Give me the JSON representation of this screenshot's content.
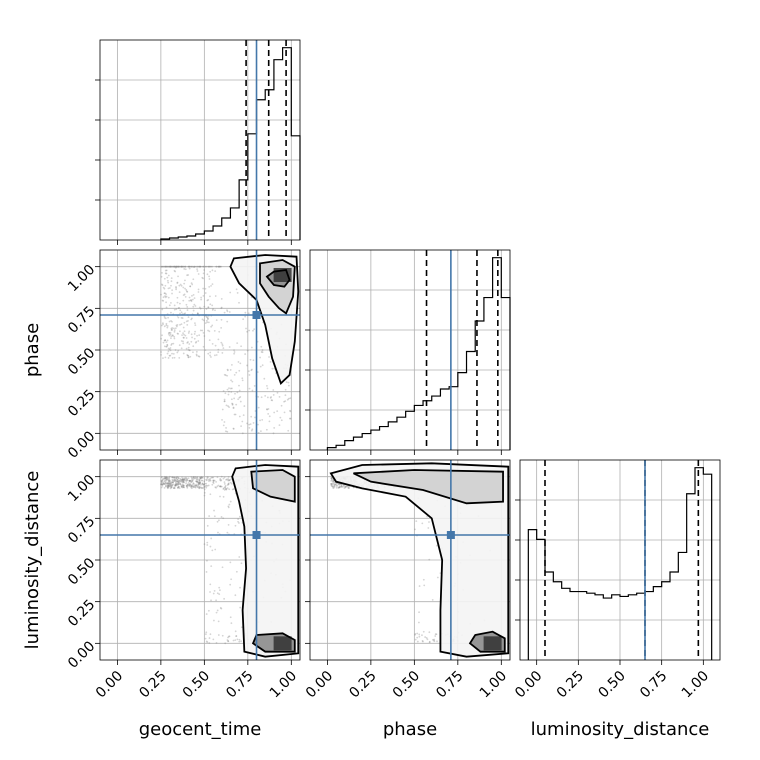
{
  "chart_data": {
    "type": "corner",
    "parameters": [
      "geocent_time",
      "phase",
      "luminosity_distance"
    ],
    "tick_labels": [
      "0.00",
      "0.25",
      "0.50",
      "0.75",
      "1.00"
    ],
    "axis_range": [
      -0.1,
      1.1
    ],
    "grid": true,
    "truth_color": "#4477aa",
    "truths": {
      "geocent_time": 0.8,
      "phase": 0.71,
      "luminosity_distance": 0.65
    },
    "histograms": [
      {
        "parameter": "geocent_time",
        "range": [
          -0.1,
          1.05
        ],
        "bin_edges": [
          0.25,
          0.3,
          0.35,
          0.4,
          0.45,
          0.5,
          0.55,
          0.6,
          0.65,
          0.7,
          0.75,
          0.8,
          0.85,
          0.9,
          0.95,
          1.0,
          1.05
        ],
        "counts": [
          0.005,
          0.01,
          0.015,
          0.02,
          0.03,
          0.045,
          0.07,
          0.11,
          0.16,
          0.3,
          0.53,
          0.7,
          0.75,
          0.9,
          0.96,
          0.52
        ],
        "quantiles": [
          0.74,
          0.87,
          0.97
        ]
      },
      {
        "parameter": "phase",
        "range": [
          -0.1,
          1.05
        ],
        "bin_edges": [
          0.0,
          0.05,
          0.1,
          0.15,
          0.2,
          0.25,
          0.3,
          0.35,
          0.4,
          0.45,
          0.5,
          0.55,
          0.6,
          0.65,
          0.7,
          0.75,
          0.8,
          0.85,
          0.9,
          0.95,
          1.0,
          1.05
        ],
        "counts": [
          0.01,
          0.02,
          0.04,
          0.055,
          0.07,
          0.085,
          0.1,
          0.12,
          0.14,
          0.165,
          0.19,
          0.21,
          0.23,
          0.26,
          0.27,
          0.33,
          0.42,
          0.55,
          0.65,
          0.82,
          0.65
        ],
        "quantiles": [
          0.57,
          0.86,
          0.98
        ]
      },
      {
        "parameter": "luminosity_distance",
        "range": [
          -0.1,
          1.1
        ],
        "bin_edges": [
          -0.05,
          0.0,
          0.05,
          0.1,
          0.15,
          0.2,
          0.25,
          0.3,
          0.35,
          0.4,
          0.45,
          0.5,
          0.55,
          0.6,
          0.65,
          0.7,
          0.75,
          0.8,
          0.85,
          0.9,
          0.95,
          1.0,
          1.05
        ],
        "counts": [
          0.4,
          0.37,
          0.27,
          0.24,
          0.22,
          0.21,
          0.21,
          0.205,
          0.2,
          0.19,
          0.2,
          0.195,
          0.2,
          0.205,
          0.21,
          0.225,
          0.24,
          0.27,
          0.33,
          0.51,
          0.59,
          0.57
        ],
        "quantiles": [
          0.05,
          0.65,
          0.97
        ]
      }
    ],
    "scatter_panels": [
      {
        "x": "geocent_time",
        "y": "phase",
        "mode": [
          0.95,
          0.95
        ],
        "contours": [
          [
            [
              0.67,
              1.05
            ],
            [
              0.85,
              1.07
            ],
            [
              1.03,
              1.06
            ],
            [
              1.04,
              0.85
            ],
            [
              1.02,
              0.55
            ],
            [
              0.99,
              0.35
            ],
            [
              0.94,
              0.3
            ],
            [
              0.89,
              0.45
            ],
            [
              0.85,
              0.65
            ],
            [
              0.8,
              0.8
            ],
            [
              0.7,
              0.9
            ],
            [
              0.65,
              1.0
            ]
          ],
          [
            [
              0.82,
              1.02
            ],
            [
              0.95,
              1.04
            ],
            [
              1.02,
              1.0
            ],
            [
              1.01,
              0.82
            ],
            [
              0.97,
              0.72
            ],
            [
              0.93,
              0.75
            ],
            [
              0.87,
              0.82
            ],
            [
              0.82,
              0.9
            ]
          ],
          [
            [
              0.86,
              0.94
            ],
            [
              0.9,
              0.97
            ],
            [
              0.97,
              0.98
            ],
            [
              0.99,
              0.92
            ],
            [
              0.96,
              0.88
            ],
            [
              0.9,
              0.89
            ]
          ]
        ]
      },
      {
        "x": "geocent_time",
        "y": "luminosity_distance",
        "mode": [
          0.95,
          0.0
        ],
        "contours": [
          [
            [
              0.68,
              1.05
            ],
            [
              0.85,
              1.07
            ],
            [
              1.04,
              1.06
            ],
            [
              1.04,
              0.6
            ],
            [
              1.04,
              -0.06
            ],
            [
              0.85,
              -0.08
            ],
            [
              0.73,
              -0.05
            ],
            [
              0.72,
              0.2
            ],
            [
              0.74,
              0.45
            ],
            [
              0.73,
              0.7
            ],
            [
              0.7,
              0.85
            ],
            [
              0.66,
              1.0
            ]
          ],
          [
            [
              0.77,
              1.03
            ],
            [
              0.95,
              1.04
            ],
            [
              1.02,
              1.0
            ],
            [
              1.02,
              0.85
            ],
            [
              0.88,
              0.88
            ],
            [
              0.78,
              0.93
            ]
          ],
          [
            [
              0.8,
              0.05
            ],
            [
              0.95,
              0.06
            ],
            [
              1.02,
              0.02
            ],
            [
              1.02,
              -0.05
            ],
            [
              0.85,
              -0.05
            ],
            [
              0.78,
              0.0
            ]
          ]
        ]
      },
      {
        "x": "phase",
        "y": "luminosity_distance",
        "mode": [
          0.95,
          0.0
        ],
        "contours": [
          [
            [
              0.02,
              1.02
            ],
            [
              0.2,
              1.07
            ],
            [
              0.6,
              1.08
            ],
            [
              1.04,
              1.06
            ],
            [
              1.04,
              0.5
            ],
            [
              1.04,
              -0.06
            ],
            [
              0.8,
              -0.08
            ],
            [
              0.65,
              -0.05
            ],
            [
              0.65,
              0.2
            ],
            [
              0.66,
              0.5
            ],
            [
              0.6,
              0.75
            ],
            [
              0.45,
              0.88
            ],
            [
              0.2,
              0.93
            ],
            [
              0.05,
              0.97
            ]
          ],
          [
            [
              0.15,
              1.02
            ],
            [
              0.5,
              1.04
            ],
            [
              1.01,
              1.03
            ],
            [
              1.01,
              0.85
            ],
            [
              0.8,
              0.84
            ],
            [
              0.55,
              0.92
            ],
            [
              0.25,
              0.97
            ]
          ],
          [
            [
              0.85,
              0.05
            ],
            [
              0.95,
              0.07
            ],
            [
              1.02,
              0.03
            ],
            [
              1.02,
              -0.05
            ],
            [
              0.88,
              -0.05
            ],
            [
              0.82,
              0.0
            ]
          ]
        ]
      }
    ]
  }
}
